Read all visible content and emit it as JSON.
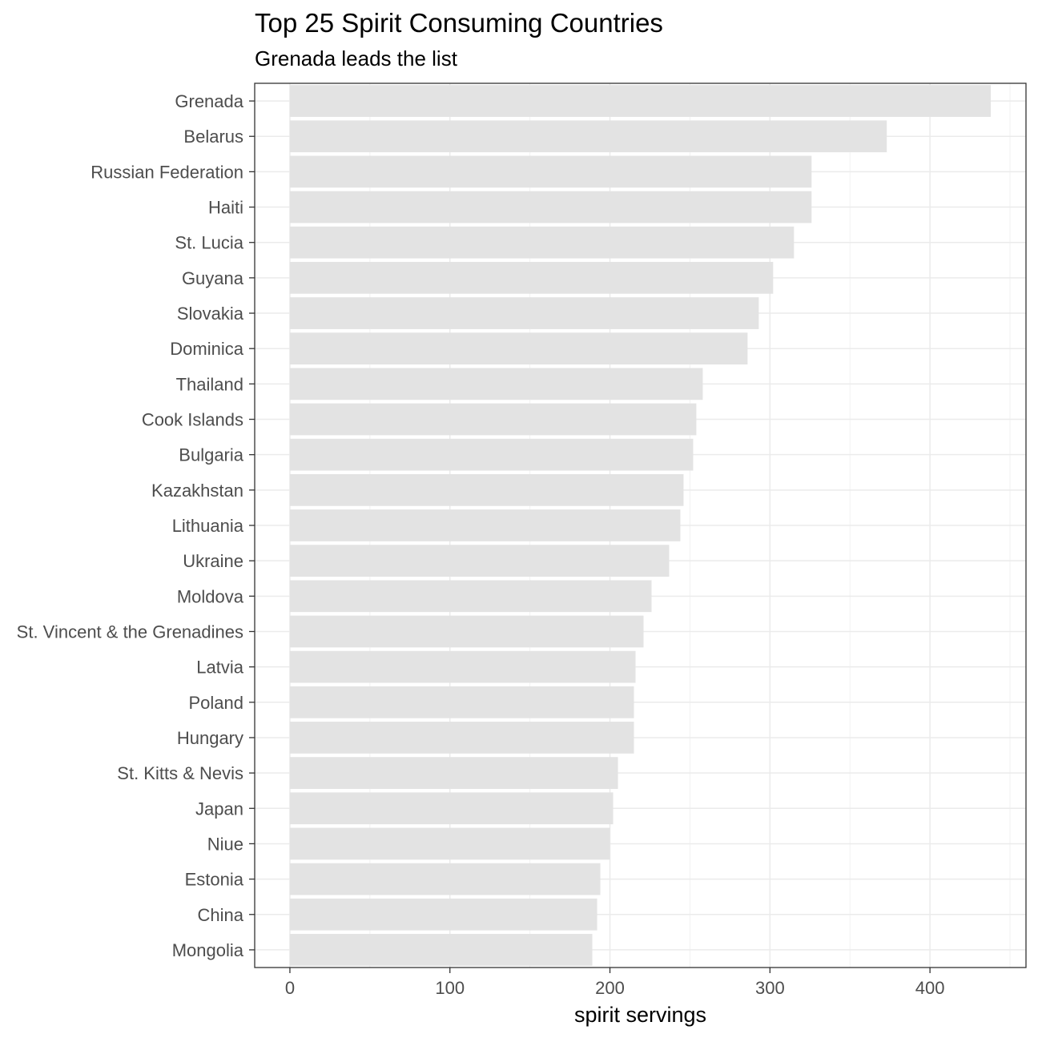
{
  "chart_data": {
    "type": "bar",
    "orientation": "horizontal",
    "title": "Top 25 Spirit Consuming Countries",
    "subtitle": "Grenada leads the list",
    "xlabel": "spirit servings",
    "ylabel": "",
    "xlim": [
      -22,
      460
    ],
    "xticks": [
      0,
      100,
      200,
      300,
      400
    ],
    "grid": true,
    "bar_color": "#e3e3e3",
    "categories": [
      "Grenada",
      "Belarus",
      "Russian Federation",
      "Haiti",
      "St. Lucia",
      "Guyana",
      "Slovakia",
      "Dominica",
      "Thailand",
      "Cook Islands",
      "Bulgaria",
      "Kazakhstan",
      "Lithuania",
      "Ukraine",
      "Moldova",
      "St. Vincent & the Grenadines",
      "Latvia",
      "Poland",
      "Hungary",
      "St. Kitts & Nevis",
      "Japan",
      "Niue",
      "Estonia",
      "China",
      "Mongolia"
    ],
    "values": [
      438,
      373,
      326,
      326,
      315,
      302,
      293,
      286,
      258,
      254,
      252,
      246,
      244,
      237,
      226,
      221,
      216,
      215,
      215,
      205,
      202,
      200,
      194,
      192,
      189
    ]
  }
}
